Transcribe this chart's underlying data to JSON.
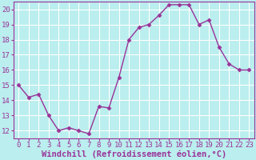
{
  "x": [
    0,
    1,
    2,
    3,
    4,
    5,
    6,
    7,
    8,
    9,
    10,
    11,
    12,
    13,
    14,
    15,
    16,
    17,
    18,
    19,
    20,
    21,
    22,
    23
  ],
  "y": [
    15.0,
    14.2,
    14.4,
    13.0,
    12.0,
    12.2,
    12.0,
    11.8,
    13.6,
    13.5,
    15.5,
    18.0,
    18.8,
    19.0,
    19.6,
    20.3,
    20.3,
    20.3,
    19.0,
    19.3,
    17.5,
    16.4,
    16.0,
    16.0
  ],
  "line_color": "#993399",
  "marker": "D",
  "marker_size": 2.5,
  "bg_color": "#bbeeee",
  "grid_color": "#ffffff",
  "xlabel": "Windchill (Refroidissement éolien,°C)",
  "ylim": [
    11.5,
    20.5
  ],
  "xlim": [
    -0.5,
    23.5
  ],
  "yticks": [
    12,
    13,
    14,
    15,
    16,
    17,
    18,
    19,
    20
  ],
  "xticks": [
    0,
    1,
    2,
    3,
    4,
    5,
    6,
    7,
    8,
    9,
    10,
    11,
    12,
    13,
    14,
    15,
    16,
    17,
    18,
    19,
    20,
    21,
    22,
    23
  ],
  "tick_fontsize": 6.5,
  "xlabel_fontsize": 7.5,
  "spine_color": "#993399",
  "tick_color": "#993399"
}
